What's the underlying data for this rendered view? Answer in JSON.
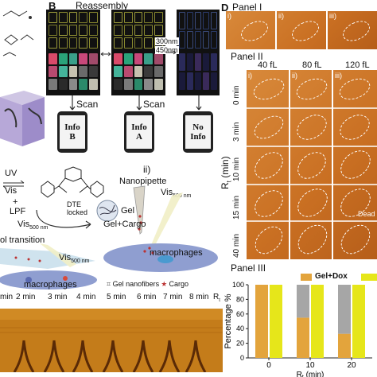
{
  "panel_labels": {
    "b": "B",
    "d": "D"
  },
  "reassembly": {
    "title": "Reassembly",
    "wave_a": "300nm",
    "wave_b": "450nm",
    "scan": "Scan",
    "phones": [
      {
        "line1": "Info",
        "line2": "B"
      },
      {
        "line1": "Info",
        "line2": "A"
      },
      {
        "line1": "No",
        "line2": "Info"
      }
    ]
  },
  "scheme": {
    "uv": "UV",
    "vis": "Vis",
    "plus": "+",
    "lpf": "LPF",
    "dte": "DTE",
    "locked": "locked",
    "vis500": "Vis",
    "vis500_sub": "500 nm",
    "gel": "Gel",
    "transition": "ol transition",
    "sub_ii": "ii)",
    "nanopipette": "Nanopipette",
    "vis_pip": "Vis",
    "vis_pip_sub": "500 nm",
    "gel_cargo": "Gel+Cargo",
    "macrophages": "macrophages",
    "macrophages_left": "macrophages",
    "vis_left": "Vis",
    "vis_left_sub": "500 nm",
    "legend_nanofibers": "Gel nanofibers",
    "legend_cargo": "Cargo"
  },
  "timeline": {
    "labels": [
      "min",
      "2 min",
      "3 min",
      "4 min",
      "5 min",
      "6 min",
      "7 min",
      "8 min"
    ],
    "rt": "R"
  },
  "panel1": {
    "title": "Panel I",
    "sub": [
      "i)",
      "ii)",
      "iii)"
    ]
  },
  "panel2": {
    "title": "Panel II",
    "columns": [
      "40 fL",
      "80 fL",
      "120 fL"
    ],
    "rows": [
      "0 min",
      "3 min",
      "10 min",
      "15 min",
      "40 min"
    ],
    "ylabel": "R",
    "ylabel_sub": "t",
    "ylabel_unit": " (min)",
    "sub": [
      "i)",
      "ii)",
      "iii)"
    ],
    "dead": "Dead"
  },
  "panel3": {
    "title": "Panel III",
    "chart_data": {
      "type": "bar",
      "categories": [
        "0",
        "10",
        "20"
      ],
      "series": [
        {
          "name": "Gel+Dox",
          "values": [
            100,
            55,
            33
          ]
        },
        {
          "name": "",
          "values": [
            100,
            100,
            100
          ]
        }
      ],
      "grey_segment": [
        0,
        45,
        67
      ],
      "ylabel": "Percentage %",
      "xlabel": "R",
      "xlabel_sub": "t",
      "xlabel_unit": " (min)",
      "yticks": [
        "0",
        "20",
        "40",
        "60",
        "80",
        "100"
      ],
      "ylim": [
        0,
        100
      ],
      "colors": {
        "gel_dox": "#e3a43c",
        "second": "#e6e61a",
        "grey": "#a6a6a6"
      }
    }
  }
}
